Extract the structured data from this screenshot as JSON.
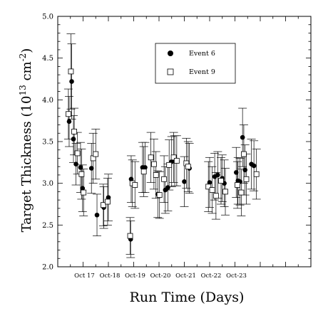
{
  "chart_data": {
    "type": "scatter",
    "xlabel": "Run Time (Days)",
    "ylabel": "Target Thickness (10",
    "ylabel_exp": "13",
    "ylabel_unit": " cm",
    "ylabel_unit_exp": "-2",
    "ylabel_close": ")",
    "xlim": [
      0,
      10
    ],
    "ylim": [
      2.0,
      5.0
    ],
    "yticks": [
      "2.0",
      "2.5",
      "3.0",
      "3.5",
      "4.0",
      "4.5",
      "5.0"
    ],
    "xticks": [
      {
        "x": 1.0,
        "label": "Oct 17"
      },
      {
        "x": 2.0,
        "label": "Oct-18"
      },
      {
        "x": 3.0,
        "label": "Oct-19"
      },
      {
        "x": 4.0,
        "label": "Oct-20"
      },
      {
        "x": 5.0,
        "label": "Oct-21"
      },
      {
        "x": 6.0,
        "label": "Oct-22"
      },
      {
        "x": 7.0,
        "label": "Oct-23"
      }
    ],
    "legend_position": "top-center",
    "series": [
      {
        "name": "Event 6",
        "marker": "filled-circle",
        "points": [
          {
            "x": 0.45,
            "y": 3.74,
            "err": 0.3
          },
          {
            "x": 0.55,
            "y": 4.22,
            "err": 0.45
          },
          {
            "x": 0.62,
            "y": 3.53,
            "err": 0.28
          },
          {
            "x": 0.72,
            "y": 3.23,
            "err": 0.25
          },
          {
            "x": 0.9,
            "y": 3.19,
            "err": 0.3
          },
          {
            "x": 0.98,
            "y": 2.94,
            "err": 0.28
          },
          {
            "x": 1.33,
            "y": 3.18,
            "err": 0.3
          },
          {
            "x": 1.55,
            "y": 2.62,
            "err": 0.25
          },
          {
            "x": 1.82,
            "y": 2.71,
            "err": 0.25
          },
          {
            "x": 2.0,
            "y": 2.83,
            "err": 0.28
          },
          {
            "x": 2.88,
            "y": 2.33,
            "err": 0.22
          },
          {
            "x": 2.9,
            "y": 3.05,
            "err": 0.28
          },
          {
            "x": 3.35,
            "y": 3.19,
            "err": 0.3
          },
          {
            "x": 3.45,
            "y": 3.19,
            "err": 0.3
          },
          {
            "x": 3.95,
            "y": 2.87,
            "err": 0.28
          },
          {
            "x": 4.25,
            "y": 2.92,
            "err": 0.28
          },
          {
            "x": 4.35,
            "y": 2.95,
            "err": 0.28
          },
          {
            "x": 4.5,
            "y": 3.26,
            "err": 0.3
          },
          {
            "x": 4.62,
            "y": 3.27,
            "err": 0.3
          },
          {
            "x": 5.0,
            "y": 3.02,
            "err": 0.3
          },
          {
            "x": 5.2,
            "y": 3.18,
            "err": 0.3
          },
          {
            "x": 6.0,
            "y": 3.01,
            "err": 0.3
          },
          {
            "x": 6.2,
            "y": 3.08,
            "err": 0.28
          },
          {
            "x": 6.32,
            "y": 3.1,
            "err": 0.28
          },
          {
            "x": 6.5,
            "y": 3.06,
            "err": 0.28
          },
          {
            "x": 6.58,
            "y": 3.0,
            "err": 0.28
          },
          {
            "x": 7.05,
            "y": 3.13,
            "err": 0.3
          },
          {
            "x": 7.12,
            "y": 3.03,
            "err": 0.28
          },
          {
            "x": 7.2,
            "y": 3.02,
            "err": 0.28
          },
          {
            "x": 7.3,
            "y": 3.55,
            "err": 0.35
          },
          {
            "x": 7.4,
            "y": 3.16,
            "err": 0.3
          },
          {
            "x": 7.65,
            "y": 3.23,
            "err": 0.3
          },
          {
            "x": 7.75,
            "y": 3.21,
            "err": 0.3
          }
        ]
      },
      {
        "name": "Event 9",
        "marker": "open-square",
        "points": [
          {
            "x": 0.42,
            "y": 3.83,
            "err": 0.3
          },
          {
            "x": 0.52,
            "y": 4.34,
            "err": 0.45
          },
          {
            "x": 0.65,
            "y": 3.62,
            "err": 0.28
          },
          {
            "x": 0.78,
            "y": 3.36,
            "err": 0.25
          },
          {
            "x": 0.94,
            "y": 3.11,
            "err": 0.3
          },
          {
            "x": 1.02,
            "y": 2.89,
            "err": 0.28
          },
          {
            "x": 1.4,
            "y": 3.3,
            "err": 0.3
          },
          {
            "x": 1.5,
            "y": 3.35,
            "err": 0.3
          },
          {
            "x": 1.8,
            "y": 2.74,
            "err": 0.25
          },
          {
            "x": 1.97,
            "y": 2.78,
            "err": 0.28
          },
          {
            "x": 2.86,
            "y": 2.37,
            "err": 0.22
          },
          {
            "x": 2.95,
            "y": 3.0,
            "err": 0.28
          },
          {
            "x": 3.05,
            "y": 2.98,
            "err": 0.28
          },
          {
            "x": 3.4,
            "y": 3.14,
            "err": 0.3
          },
          {
            "x": 3.68,
            "y": 3.31,
            "err": 0.3
          },
          {
            "x": 3.8,
            "y": 3.23,
            "err": 0.3
          },
          {
            "x": 3.88,
            "y": 3.1,
            "err": 0.28
          },
          {
            "x": 4.02,
            "y": 2.86,
            "err": 0.28
          },
          {
            "x": 4.2,
            "y": 3.05,
            "err": 0.28
          },
          {
            "x": 4.4,
            "y": 3.22,
            "err": 0.3
          },
          {
            "x": 4.58,
            "y": 3.31,
            "err": 0.3
          },
          {
            "x": 4.7,
            "y": 3.27,
            "err": 0.3
          },
          {
            "x": 5.08,
            "y": 3.24,
            "err": 0.3
          },
          {
            "x": 5.15,
            "y": 3.2,
            "err": 0.3
          },
          {
            "x": 5.95,
            "y": 2.96,
            "err": 0.3
          },
          {
            "x": 6.1,
            "y": 2.92,
            "err": 0.28
          },
          {
            "x": 6.25,
            "y": 2.85,
            "err": 0.28
          },
          {
            "x": 6.45,
            "y": 3.03,
            "err": 0.28
          },
          {
            "x": 6.62,
            "y": 2.9,
            "err": 0.28
          },
          {
            "x": 7.1,
            "y": 2.98,
            "err": 0.28
          },
          {
            "x": 7.25,
            "y": 2.89,
            "err": 0.28
          },
          {
            "x": 7.35,
            "y": 3.35,
            "err": 0.35
          },
          {
            "x": 7.45,
            "y": 3.05,
            "err": 0.3
          },
          {
            "x": 7.85,
            "y": 3.11,
            "err": 0.3
          }
        ]
      }
    ]
  }
}
